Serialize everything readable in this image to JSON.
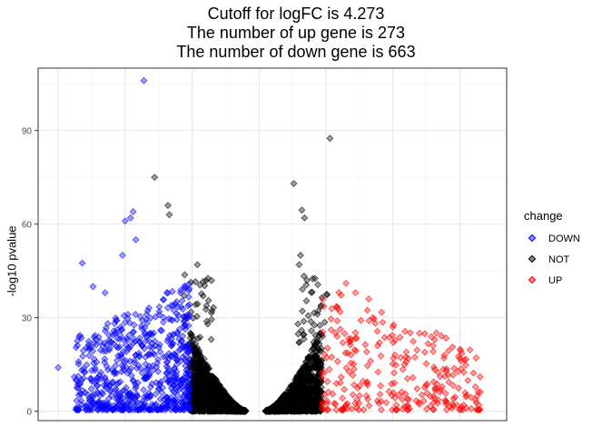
{
  "title_lines": [
    "Cutoff for logFC is 4.273",
    "The number of up gene is 273",
    "The number of down gene is 663"
  ],
  "legend": {
    "title": "change",
    "items": [
      {
        "label": "DOWN",
        "color": "#0000ff"
      },
      {
        "label": "NOT",
        "color": "#000000"
      },
      {
        "label": "UP",
        "color": "#ff0000"
      }
    ]
  },
  "chart_data": {
    "type": "scatter",
    "xlabel": "",
    "ylabel": "-log10 pvalue",
    "ylim": [
      -3,
      110
    ],
    "yticks": [
      0,
      30,
      60,
      90
    ],
    "grid": true,
    "legend_position": "right",
    "series": [
      {
        "name": "DOWN",
        "color": "#0000ff",
        "count": 663,
        "points": [
          [
            -8.6,
            106
          ],
          [
            -9.4,
            64
          ],
          [
            -10.0,
            61
          ],
          [
            -9.6,
            62
          ],
          [
            -9.2,
            55
          ],
          [
            -10.2,
            50
          ],
          [
            -13.2,
            47.5
          ],
          [
            -15.0,
            14
          ],
          [
            -13.8,
            11
          ],
          [
            -12.4,
            40
          ],
          [
            -11.5,
            38
          ]
        ]
      },
      {
        "name": "NOT",
        "color": "#000000",
        "points": [
          [
            -7.8,
            75
          ],
          [
            -6.8,
            66
          ],
          [
            -6.7,
            63
          ],
          [
            -4.6,
            47
          ],
          [
            -3.2,
            7
          ],
          [
            2.6,
            73
          ],
          [
            3.2,
            64.5
          ],
          [
            3.4,
            62
          ],
          [
            3.1,
            50
          ],
          [
            3.0,
            47
          ],
          [
            5.3,
            87.5
          ]
        ]
      },
      {
        "name": "UP",
        "color": "#ff0000",
        "count": 273,
        "points": [
          [
            6.5,
            41
          ],
          [
            7.2,
            38
          ],
          [
            8.5,
            30
          ],
          [
            10.0,
            27
          ],
          [
            12.0,
            25
          ],
          [
            13.0,
            21
          ],
          [
            15.0,
            17
          ],
          [
            14.0,
            13
          ],
          [
            11.0,
            19
          ],
          [
            9.0,
            22
          ],
          [
            8.2,
            36
          ]
        ]
      }
    ]
  }
}
